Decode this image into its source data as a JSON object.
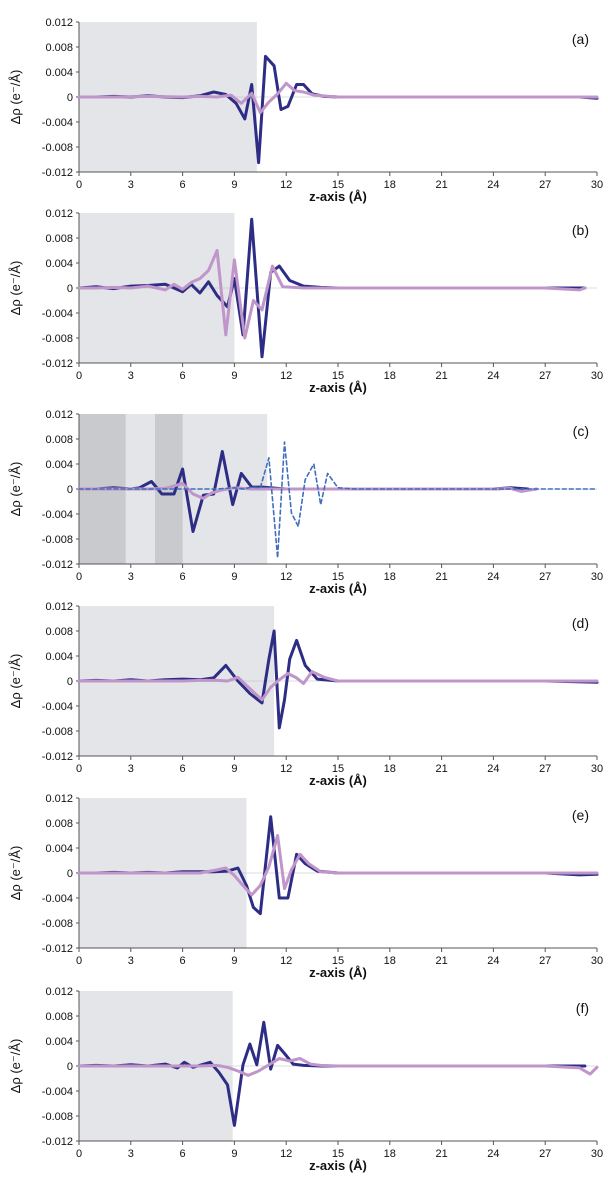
{
  "figure": {
    "common": {
      "xlabel": "z-axis (Å)",
      "ylabel": "Δρ (e⁻/Å)",
      "xlim": [
        0,
        30
      ],
      "ylim": [
        -0.012,
        0.012
      ],
      "xticks": [
        "0",
        "3",
        "6",
        "9",
        "12",
        "15",
        "18",
        "21",
        "24",
        "27",
        "30"
      ],
      "yticks": [
        "0.012",
        "0.008",
        "0.004",
        "0",
        "-0.004",
        "-0.008",
        "-0.012"
      ],
      "colors": {
        "dark": "#2e2d86",
        "light": "#c095c9",
        "dashed": "#3f6fbd",
        "shade": "#e3e5e9",
        "shade_dark": "#c8cace"
      }
    }
  },
  "chart_data": [
    {
      "type": "line",
      "panel_label": "(a)",
      "xlabel": "z-axis (Å)",
      "ylabel": "Δρ (e⁻/Å)",
      "xlim": [
        0,
        30
      ],
      "ylim": [
        -0.012,
        0.012
      ],
      "grid": false,
      "shaded_regions": [
        {
          "x": [
            0,
            10.3
          ]
        }
      ],
      "series": [
        {
          "style": "dark",
          "x": [
            0,
            1,
            2,
            3,
            4,
            5,
            6,
            7,
            7.8,
            8.5,
            9.1,
            9.6,
            10.0,
            10.4,
            10.8,
            11.3,
            11.7,
            12.1,
            12.6,
            13.0,
            13.5,
            14.2,
            15,
            18,
            21,
            24,
            27,
            29,
            30
          ],
          "y": [
            0,
            0,
            0.0001,
            0,
            0.0002,
            0,
            -0.0001,
            0.0002,
            0.0008,
            0.0004,
            -0.001,
            -0.0035,
            0.002,
            -0.0105,
            0.0065,
            0.005,
            -0.002,
            -0.0015,
            0.002,
            0.002,
            0.0005,
            0.0001,
            0,
            0,
            0,
            0,
            0,
            0,
            -0.0002
          ]
        },
        {
          "style": "light",
          "x": [
            0,
            2,
            4,
            6,
            7,
            8,
            8.8,
            9.4,
            10.0,
            10.5,
            11.0,
            11.5,
            12.0,
            12.5,
            13.0,
            13.6,
            14.5,
            15,
            18,
            21,
            24,
            27,
            30
          ],
          "y": [
            0,
            0,
            0.0001,
            0,
            0.0001,
            0,
            0.0003,
            -0.001,
            0.0006,
            -0.0025,
            -0.0008,
            0.0005,
            0.0022,
            0.001,
            0.0008,
            0.0003,
            0.0001,
            0,
            0,
            0,
            0,
            0,
            0
          ]
        }
      ]
    },
    {
      "type": "line",
      "panel_label": "(b)",
      "xlabel": "z-axis (Å)",
      "ylabel": "Δρ (e⁻/Å)",
      "xlim": [
        0,
        30
      ],
      "ylim": [
        -0.012,
        0.012
      ],
      "grid": false,
      "shaded_regions": [
        {
          "x": [
            0,
            9.0
          ]
        }
      ],
      "series": [
        {
          "style": "dark",
          "x": [
            0,
            1,
            2,
            3,
            4,
            5,
            6,
            6.5,
            7,
            7.5,
            8,
            8.6,
            9.0,
            9.5,
            10.0,
            10.6,
            11.1,
            11.6,
            12.2,
            13,
            14,
            15,
            18,
            21,
            24,
            27,
            29.3
          ],
          "y": [
            0,
            0.0002,
            -0.0001,
            0.0003,
            0.0004,
            0.0006,
            -0.0006,
            0.0006,
            -0.0008,
            0.001,
            -0.0012,
            -0.003,
            0.0015,
            -0.0075,
            0.011,
            -0.011,
            0.0025,
            0.0035,
            0.0012,
            0.0003,
            0.0001,
            0,
            0,
            0,
            0,
            0,
            0
          ]
        },
        {
          "style": "light",
          "x": [
            0,
            1,
            2,
            3,
            4,
            5,
            5.5,
            6,
            6.5,
            7,
            7.5,
            8.0,
            8.5,
            9.0,
            9.6,
            10.1,
            10.6,
            11.2,
            11.8,
            12.5,
            13,
            14,
            15,
            18,
            21,
            24,
            27,
            29,
            29.3
          ],
          "y": [
            0,
            0,
            0.0001,
            0,
            0.0003,
            -0.0003,
            0.0006,
            -0.0002,
            0.0009,
            0.0015,
            0.0028,
            0.006,
            -0.0075,
            0.0045,
            -0.008,
            -0.002,
            -0.0035,
            0.0035,
            0.0002,
            0.0001,
            0,
            0,
            0,
            0,
            0,
            0,
            0,
            -0.0003,
            0
          ]
        }
      ]
    },
    {
      "type": "line",
      "panel_label": "(c)",
      "xlabel": "z-axis (Å)",
      "ylabel": "Δρ (e⁻/Å)",
      "xlim": [
        0,
        30
      ],
      "ylim": [
        -0.012,
        0.012
      ],
      "grid": false,
      "shaded_regions": [
        {
          "x": [
            0,
            10.9
          ]
        },
        {
          "x": [
            0,
            2.7
          ],
          "dark": true
        },
        {
          "x": [
            4.4,
            6.0
          ],
          "dark": true
        }
      ],
      "series": [
        {
          "style": "dark",
          "x": [
            0,
            1,
            2,
            3,
            3.5,
            4.2,
            4.8,
            5.5,
            6.0,
            6.6,
            7.2,
            7.8,
            8.3,
            8.9,
            9.4,
            10.0,
            10.6,
            11.5,
            12,
            13,
            15,
            18,
            21,
            24,
            25,
            26.0
          ],
          "y": [
            0,
            0,
            0.0002,
            0,
            0.0002,
            0.0012,
            -0.0008,
            -0.0008,
            0.0032,
            -0.0068,
            -0.001,
            -0.0008,
            0.006,
            -0.0025,
            0.0025,
            0.0003,
            0.0003,
            0.0001,
            0,
            0,
            0,
            0,
            0,
            0,
            0.0002,
            0
          ]
        },
        {
          "style": "light",
          "x": [
            0,
            1,
            2,
            3,
            4,
            5,
            5.5,
            6.0,
            6.6,
            7.2,
            7.7,
            8.2,
            9,
            10,
            11,
            12,
            14,
            16,
            18,
            21,
            24,
            25.0,
            25.6,
            26.0,
            26.5
          ],
          "y": [
            0,
            0,
            0,
            0,
            0,
            0.0001,
            0.0005,
            0.0009,
            -0.0008,
            -0.0015,
            -0.0006,
            -0.0002,
            0.0002,
            0,
            0,
            0,
            0,
            0,
            0,
            0,
            0,
            0.0001,
            -0.0004,
            -0.0002,
            0
          ]
        },
        {
          "style": "dashed",
          "x": [
            0,
            2,
            4,
            6,
            8,
            9,
            9.5,
            10,
            10.5,
            11.0,
            11.5,
            11.9,
            12.3,
            12.7,
            13.1,
            13.6,
            14.0,
            14.4,
            15.0,
            16,
            18,
            21,
            24,
            27,
            30
          ],
          "y": [
            0,
            0,
            0,
            0,
            0,
            0.0002,
            0,
            0.0003,
            0.0002,
            0.005,
            -0.011,
            0.0075,
            -0.0038,
            -0.006,
            0.0015,
            0.004,
            -0.0025,
            0.0025,
            0.0002,
            0,
            0,
            0,
            0,
            0,
            0
          ]
        }
      ]
    },
    {
      "type": "line",
      "panel_label": "(d)",
      "xlabel": "z-axis (Å)",
      "ylabel": "Δρ (e⁻/Å)",
      "xlim": [
        0,
        30
      ],
      "ylim": [
        -0.012,
        0.012
      ],
      "grid": false,
      "shaded_regions": [
        {
          "x": [
            0,
            11.3
          ]
        }
      ],
      "series": [
        {
          "style": "dark",
          "x": [
            0,
            1,
            2,
            3,
            4,
            5,
            6,
            7,
            7.8,
            8.5,
            9.2,
            9.9,
            10.6,
            11.0,
            11.3,
            11.6,
            11.9,
            12.2,
            12.6,
            13.1,
            13.8,
            15,
            18,
            21,
            24,
            27,
            30
          ],
          "y": [
            0,
            0.0001,
            0,
            0.0002,
            0,
            0.0002,
            0.0003,
            0.0002,
            0.0005,
            0.0025,
            0,
            -0.002,
            -0.0035,
            0.0035,
            0.008,
            -0.0075,
            -0.003,
            0.0035,
            0.0065,
            0.0025,
            0.0003,
            0,
            0,
            0,
            0,
            0,
            -0.0002
          ]
        },
        {
          "style": "light",
          "x": [
            0,
            2,
            4,
            6,
            7,
            8,
            8.6,
            9.2,
            10.0,
            10.6,
            11.1,
            11.6,
            12.1,
            12.6,
            13.0,
            13.5,
            14.2,
            15,
            18,
            21,
            24,
            27,
            30
          ],
          "y": [
            0,
            0,
            0,
            0,
            0.0001,
            0.0001,
            0,
            0.0006,
            -0.0015,
            -0.003,
            -0.001,
            0.0002,
            0.0012,
            0.0005,
            -0.0004,
            0.0015,
            0.0006,
            0,
            0,
            0,
            0,
            0,
            0
          ]
        }
      ]
    },
    {
      "type": "line",
      "panel_label": "(e)",
      "xlabel": "z-axis (Å)",
      "ylabel": "Δρ (e⁻/Å)",
      "xlim": [
        0,
        30
      ],
      "ylim": [
        -0.012,
        0.012
      ],
      "grid": false,
      "shaded_regions": [
        {
          "x": [
            0,
            9.7
          ]
        }
      ],
      "series": [
        {
          "style": "dark",
          "x": [
            0,
            1,
            2,
            3,
            4,
            5,
            6,
            7,
            7.8,
            8.6,
            9.2,
            9.7,
            10.1,
            10.5,
            11.1,
            11.6,
            12.1,
            12.6,
            13.1,
            13.8,
            15,
            18,
            21,
            24,
            27,
            29,
            30
          ],
          "y": [
            0,
            0,
            0.0001,
            0,
            0.0001,
            0,
            0.0002,
            0.0002,
            0.0002,
            0.0003,
            0.0008,
            -0.002,
            -0.0055,
            -0.0065,
            0.009,
            -0.004,
            -0.004,
            0.003,
            0.0015,
            0.0003,
            0,
            0,
            0,
            0,
            0,
            -0.0003,
            -0.0002
          ]
        },
        {
          "style": "light",
          "x": [
            0,
            2,
            4,
            6,
            7,
            8.0,
            8.5,
            9.0,
            9.5,
            10.0,
            10.5,
            11.0,
            11.5,
            11.9,
            12.3,
            12.8,
            13.3,
            14.0,
            15,
            18,
            21,
            24,
            27,
            30
          ],
          "y": [
            0,
            0,
            0,
            0,
            0,
            0.0005,
            0.0008,
            -0.0004,
            -0.002,
            -0.0035,
            -0.002,
            0.001,
            0.006,
            -0.0025,
            0.0005,
            0.003,
            0.0015,
            0.0002,
            0,
            0,
            0,
            0,
            0,
            0
          ]
        }
      ]
    },
    {
      "type": "line",
      "panel_label": "(f)",
      "xlabel": "z-axis (Å)",
      "ylabel": "Δρ (e⁻/Å)",
      "xlim": [
        0,
        30
      ],
      "ylim": [
        -0.012,
        0.012
      ],
      "grid": false,
      "shaded_regions": [
        {
          "x": [
            0,
            8.9
          ]
        }
      ],
      "series": [
        {
          "style": "dark",
          "x": [
            0,
            1,
            2,
            3,
            4,
            5,
            5.7,
            6.1,
            6.6,
            7.1,
            7.6,
            8.1,
            8.6,
            9.0,
            9.5,
            9.9,
            10.3,
            10.7,
            11.1,
            11.5,
            11.9,
            12.4,
            13,
            14,
            15,
            18,
            21,
            24,
            27,
            29.3
          ],
          "y": [
            0,
            0.0001,
            0,
            0.0002,
            0,
            0.0003,
            -0.0003,
            0.0006,
            -0.0002,
            0.0002,
            0.0006,
            -0.001,
            -0.003,
            -0.0095,
            0.0002,
            0.0035,
            0.0002,
            0.007,
            -0.0005,
            0.0033,
            0.002,
            0.0003,
            0.0001,
            0,
            0,
            0,
            0,
            0,
            0,
            0
          ]
        },
        {
          "style": "light",
          "x": [
            0,
            2,
            4,
            6,
            7,
            8,
            8.6,
            9.2,
            9.8,
            10.4,
            11.0,
            11.6,
            12.2,
            12.8,
            13.4,
            14,
            15,
            18,
            21,
            24,
            27,
            29,
            29.6,
            30
          ],
          "y": [
            0,
            0,
            0,
            0,
            0,
            0.0001,
            -0.0002,
            -0.0008,
            -0.0015,
            -0.0008,
            0.0002,
            0.0012,
            0.0008,
            0.0012,
            0.0003,
            0.0001,
            0,
            0,
            0,
            0,
            0,
            -0.0003,
            -0.0013,
            -0.0002
          ]
        }
      ]
    }
  ]
}
